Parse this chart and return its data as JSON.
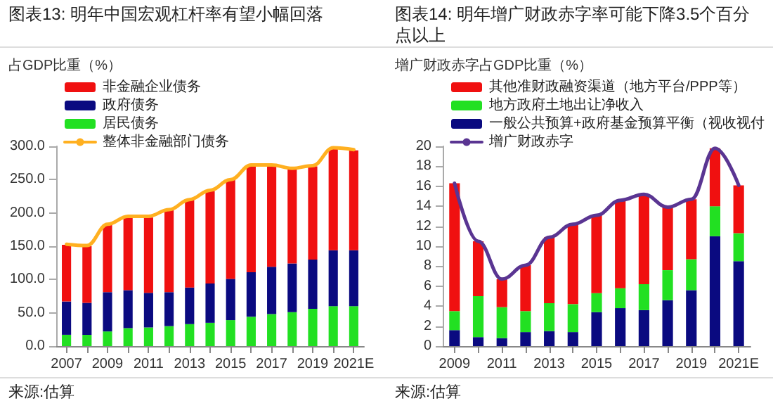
{
  "chart_data": [
    {
      "type": "bar",
      "title": "图表13: 明年中国宏观杠杆率有望小幅回落",
      "ylabel": "占GDP比重（%）",
      "categories": [
        "2007",
        null,
        "2009",
        null,
        "2011",
        null,
        "2013",
        null,
        "2015",
        null,
        "2017",
        null,
        "2019",
        null,
        "2021E"
      ],
      "stacked": true,
      "ylim": [
        0,
        300
      ],
      "yticks": [
        {
          "value": 0,
          "label": "0.0"
        },
        {
          "value": 50,
          "label": "50.0"
        },
        {
          "value": 100,
          "label": "100.0"
        },
        {
          "value": 150,
          "label": "150.0"
        },
        {
          "value": 200,
          "label": "200.0"
        },
        {
          "value": 250,
          "label": "250.0"
        },
        {
          "value": 300,
          "label": "300.0"
        }
      ],
      "grid": false,
      "legend": "top left",
      "marker": "none",
      "annotations": [
        "来源:估算"
      ],
      "series": [
        {
          "name": "居民债务",
          "color": "#22e022",
          "values": [
            17,
            17,
            22,
            27,
            28,
            30,
            33,
            35,
            39,
            44,
            48,
            51,
            56,
            60,
            60
          ]
        },
        {
          "name": "政府债务",
          "color": "#0a0a80",
          "values": [
            50,
            48,
            59,
            57,
            52,
            51,
            55,
            59,
            62,
            67,
            71,
            73,
            74,
            84,
            84
          ]
        },
        {
          "name": "非金融企业债务",
          "color": "#f01010",
          "values": [
            85,
            85,
            102,
            109,
            113,
            123,
            132,
            139,
            149,
            161,
            152,
            143,
            140,
            154,
            150
          ]
        },
        {
          "name": "整体非金融部门债务",
          "type": "line",
          "color": "#ffb020",
          "values": [
            153,
            151,
            183,
            195,
            195,
            205,
            220,
            234,
            250,
            272,
            272,
            267,
            271,
            298,
            295
          ]
        }
      ]
    },
    {
      "type": "bar",
      "title": "图表14: 明年增广财政赤字率可能下降3.5个百分点以上",
      "ylabel": "增广财政赤字占GDP比重（%）",
      "categories": [
        "2009",
        null,
        "2011",
        null,
        "2013",
        null,
        "2015",
        null,
        "2017",
        null,
        "2019",
        null,
        "2021E"
      ],
      "stacked": true,
      "ylim": [
        0,
        20
      ],
      "yticks": [
        0,
        2,
        4,
        6,
        8,
        10,
        12,
        14,
        16,
        18,
        20
      ],
      "grid": false,
      "legend": "top left",
      "marker": "none",
      "annotations": [
        "来源:估算"
      ],
      "series": [
        {
          "name": "一般公共预算+政府基金预算平衡（视收视付",
          "color": "#0a0a80",
          "values": [
            1.6,
            0.9,
            0.8,
            1.4,
            1.5,
            1.4,
            3.4,
            3.8,
            3.6,
            4.6,
            5.6,
            11.0,
            8.5
          ]
        },
        {
          "name": "地方政府土地出让净收入",
          "color": "#22e022",
          "values": [
            1.9,
            4.1,
            3.1,
            2.1,
            2.8,
            2.8,
            1.9,
            2.0,
            2.6,
            3.0,
            3.1,
            3.0,
            2.8
          ]
        },
        {
          "name": "其他准财政融资渠道（地方平台/PPP等）",
          "color": "#f01010",
          "values": [
            12.8,
            5.5,
            2.8,
            4.6,
            6.6,
            8.0,
            7.8,
            8.8,
            9.0,
            6.3,
            6.0,
            5.8,
            4.8
          ]
        },
        {
          "name": "增广财政赤字",
          "type": "line",
          "color": "#5a3592",
          "values": [
            16.3,
            10.5,
            6.7,
            8.1,
            10.9,
            12.2,
            13.1,
            14.6,
            15.2,
            13.9,
            14.7,
            19.8,
            16.1
          ]
        }
      ]
    }
  ]
}
